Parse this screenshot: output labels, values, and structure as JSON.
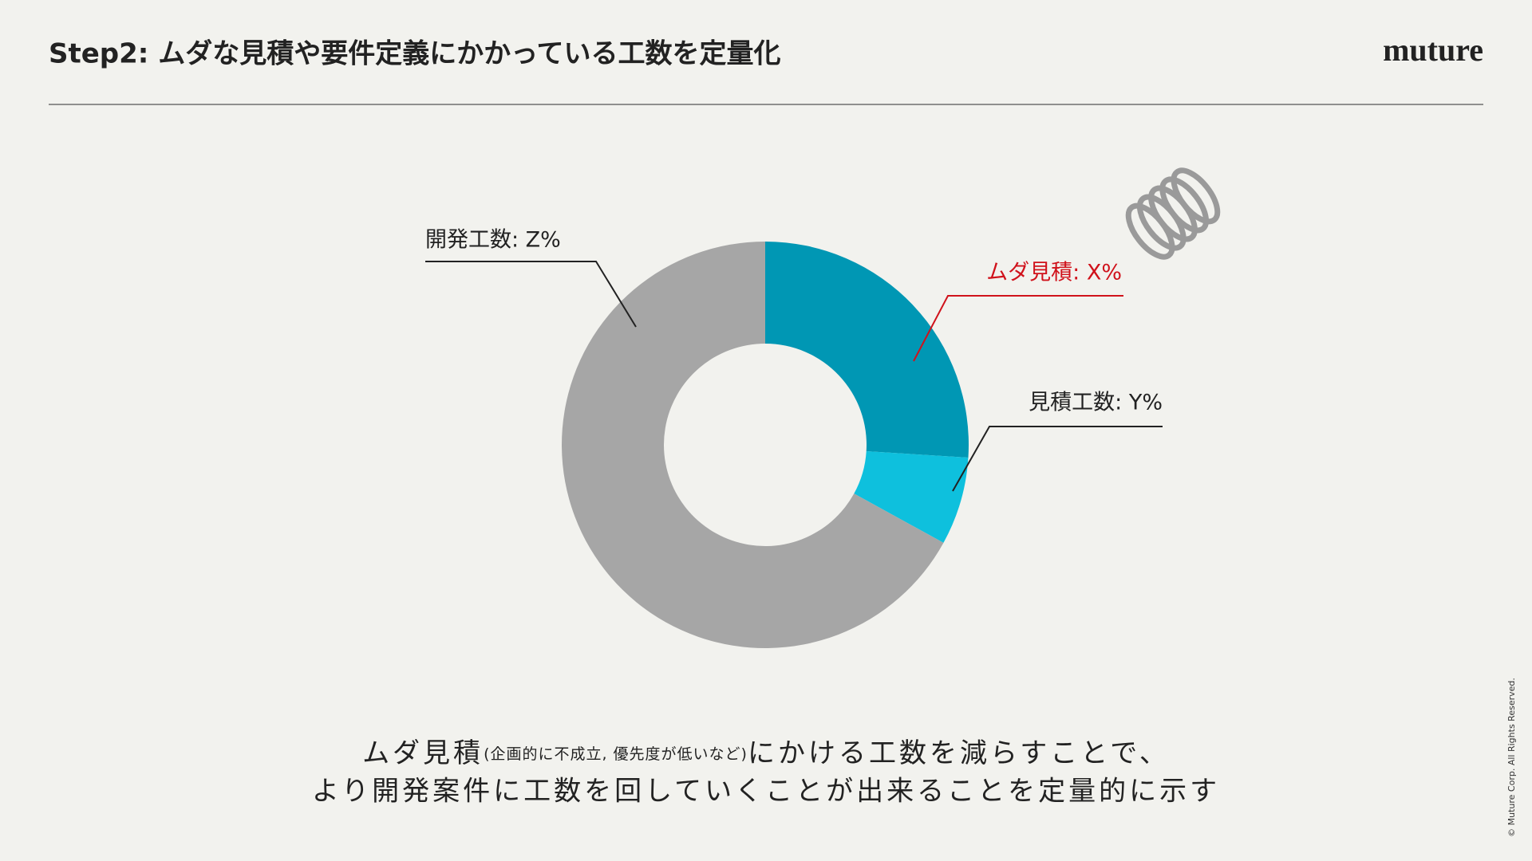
{
  "header": {
    "title": "Step2: ムダな見積や要件定義にかかっている工数を定量化",
    "logo": "muture"
  },
  "chart_data": {
    "type": "pie",
    "donut": true,
    "categories": [
      "ムダ見積: X%",
      "見積工数: Y%",
      "開発工数: Z%"
    ],
    "values": [
      26,
      7,
      67
    ],
    "colors": [
      "#0097b4",
      "#0ec0dd",
      "#a6a6a6"
    ],
    "label_colors": [
      "#d0121b",
      "#222222",
      "#222222"
    ]
  },
  "caption": {
    "line1": {
      "lead": "ムダ見積",
      "note": "(企画的に不成立, 優先度が低いなど)",
      "rest": "にかける工数を減らすことで、"
    },
    "line2": "より開発案件に工数を回していくことが出来ることを定量的に示す"
  },
  "footer": {
    "copyright": "© Muture Corp. All Rights Reserved."
  }
}
